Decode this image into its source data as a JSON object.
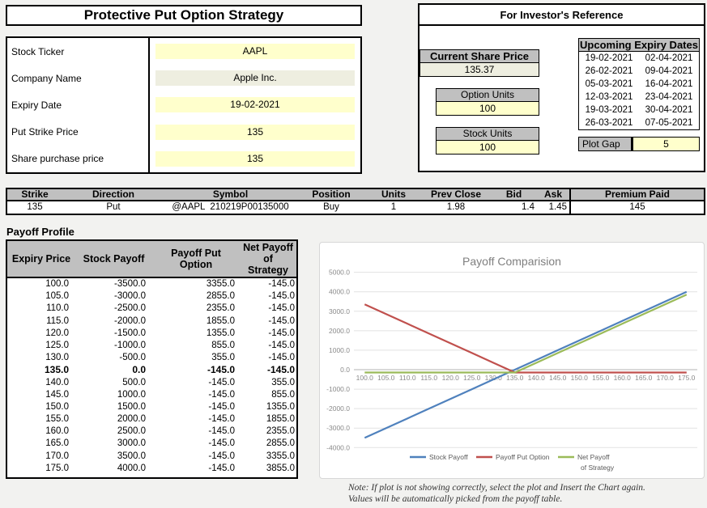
{
  "sheet": {
    "title": "Protective Put Option Strategy",
    "fields": [
      {
        "label": "Stock Ticker",
        "value": "AAPL",
        "type": "input"
      },
      {
        "label": "Company Name",
        "value": "Apple Inc.",
        "type": "computed"
      },
      {
        "label": "Expiry Date",
        "value": "19-02-2021",
        "type": "input"
      },
      {
        "label": "Put Strike Price",
        "value": "135",
        "type": "input"
      },
      {
        "label": "Share purchase price",
        "value": "135",
        "type": "input"
      }
    ]
  },
  "reference": {
    "title": "For Investor's Reference",
    "current_share_price": {
      "label": "Current Share Price",
      "value": "135.37"
    },
    "option_units": {
      "label": "Option Units",
      "value": "100"
    },
    "stock_units": {
      "label": "Stock Units",
      "value": "100"
    },
    "expiry_dates": {
      "title": "Upcoming Expiry Dates",
      "rows": [
        [
          "19-02-2021",
          "02-04-2021"
        ],
        [
          "26-02-2021",
          "09-04-2021"
        ],
        [
          "05-03-2021",
          "16-04-2021"
        ],
        [
          "12-03-2021",
          "23-04-2021"
        ],
        [
          "19-03-2021",
          "30-04-2021"
        ],
        [
          "26-03-2021",
          "07-05-2021"
        ]
      ]
    },
    "plot_gap": {
      "label": "Plot Gap",
      "value": "5"
    }
  },
  "position_table": {
    "headers": [
      "Strike",
      "Direction",
      "Symbol",
      "Position",
      "Units",
      "Prev Close",
      "Bid",
      "Ask",
      "Premium Paid"
    ],
    "row": [
      "135",
      "Put",
      "@AAPL  210219P00135000",
      "Buy",
      "1",
      "1.98",
      "1.4",
      "1.45",
      "145"
    ]
  },
  "payoff": {
    "title": "Payoff Profile",
    "headers": [
      "Expiry Price",
      "Stock Payoff",
      "Payoff Put Option",
      "Net Payoff of Strategy"
    ],
    "bold_row_index": 7,
    "rows": [
      [
        "100.0",
        "-3500.0",
        "3355.0",
        "-145.0"
      ],
      [
        "105.0",
        "-3000.0",
        "2855.0",
        "-145.0"
      ],
      [
        "110.0",
        "-2500.0",
        "2355.0",
        "-145.0"
      ],
      [
        "115.0",
        "-2000.0",
        "1855.0",
        "-145.0"
      ],
      [
        "120.0",
        "-1500.0",
        "1355.0",
        "-145.0"
      ],
      [
        "125.0",
        "-1000.0",
        "855.0",
        "-145.0"
      ],
      [
        "130.0",
        "-500.0",
        "355.0",
        "-145.0"
      ],
      [
        "135.0",
        "0.0",
        "-145.0",
        "-145.0"
      ],
      [
        "140.0",
        "500.0",
        "-145.0",
        "355.0"
      ],
      [
        "145.0",
        "1000.0",
        "-145.0",
        "855.0"
      ],
      [
        "150.0",
        "1500.0",
        "-145.0",
        "1355.0"
      ],
      [
        "155.0",
        "2000.0",
        "-145.0",
        "1855.0"
      ],
      [
        "160.0",
        "2500.0",
        "-145.0",
        "2355.0"
      ],
      [
        "165.0",
        "3000.0",
        "-145.0",
        "2855.0"
      ],
      [
        "170.0",
        "3500.0",
        "-145.0",
        "3355.0"
      ],
      [
        "175.0",
        "4000.0",
        "-145.0",
        "3855.0"
      ]
    ]
  },
  "chart_data": {
    "type": "line",
    "title": "Payoff Comparision",
    "x": [
      100,
      105,
      110,
      115,
      120,
      125,
      130,
      135,
      140,
      145,
      150,
      155,
      160,
      165,
      170,
      175
    ],
    "series": [
      {
        "name": "Stock Payoff",
        "color": "#4f81bd",
        "legend_lines": [
          "Stock Payoff"
        ],
        "values": [
          -3500,
          -3000,
          -2500,
          -2000,
          -1500,
          -1000,
          -500,
          0,
          500,
          1000,
          1500,
          2000,
          2500,
          3000,
          3500,
          4000
        ]
      },
      {
        "name": "Payoff Put Option",
        "color": "#c0504d",
        "legend_lines": [
          "Payoff Put Option"
        ],
        "values": [
          3355,
          2855,
          2355,
          1855,
          1355,
          855,
          355,
          -145,
          -145,
          -145,
          -145,
          -145,
          -145,
          -145,
          -145,
          -145
        ]
      },
      {
        "name": "Net Payoff of Strategy",
        "color": "#9bbb59",
        "legend_lines": [
          "Net Payoff",
          "of Strategy"
        ],
        "values": [
          -145,
          -145,
          -145,
          -145,
          -145,
          -145,
          -145,
          -145,
          355,
          855,
          1355,
          1855,
          2355,
          2855,
          3355,
          3855
        ]
      }
    ],
    "ylim": [
      -4000,
      5000
    ],
    "ytick_step": 1000,
    "grid": true,
    "legend_position": "bottom"
  },
  "note": {
    "line1": "Note: If plot is not showing correctly, select the plot and Insert the Chart again.",
    "line2": "Values will be automatically picked from the payoff table."
  }
}
